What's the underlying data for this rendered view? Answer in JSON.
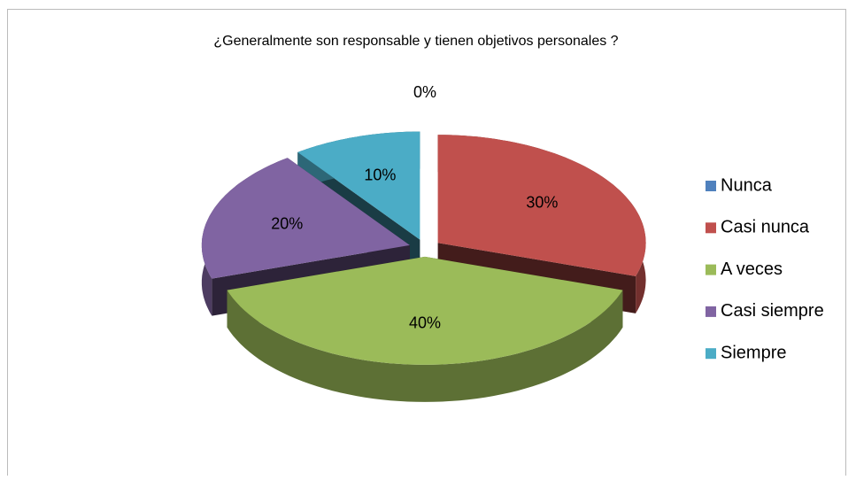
{
  "chart_data": {
    "type": "pie",
    "title": "¿Generalmente son responsable y tienen objetivos personales ?",
    "categories": [
      "Nunca",
      "Casi nunca",
      "A veces",
      "Casi siempre",
      "Siempre"
    ],
    "values": [
      0,
      30,
      40,
      20,
      10
    ],
    "value_labels": [
      "0%",
      "30%",
      "40%",
      "20%",
      "10%"
    ],
    "colors": [
      "#4f81bd",
      "#c0504d",
      "#9bbb59",
      "#8064a2",
      "#4bacc6"
    ],
    "legend": "right"
  }
}
